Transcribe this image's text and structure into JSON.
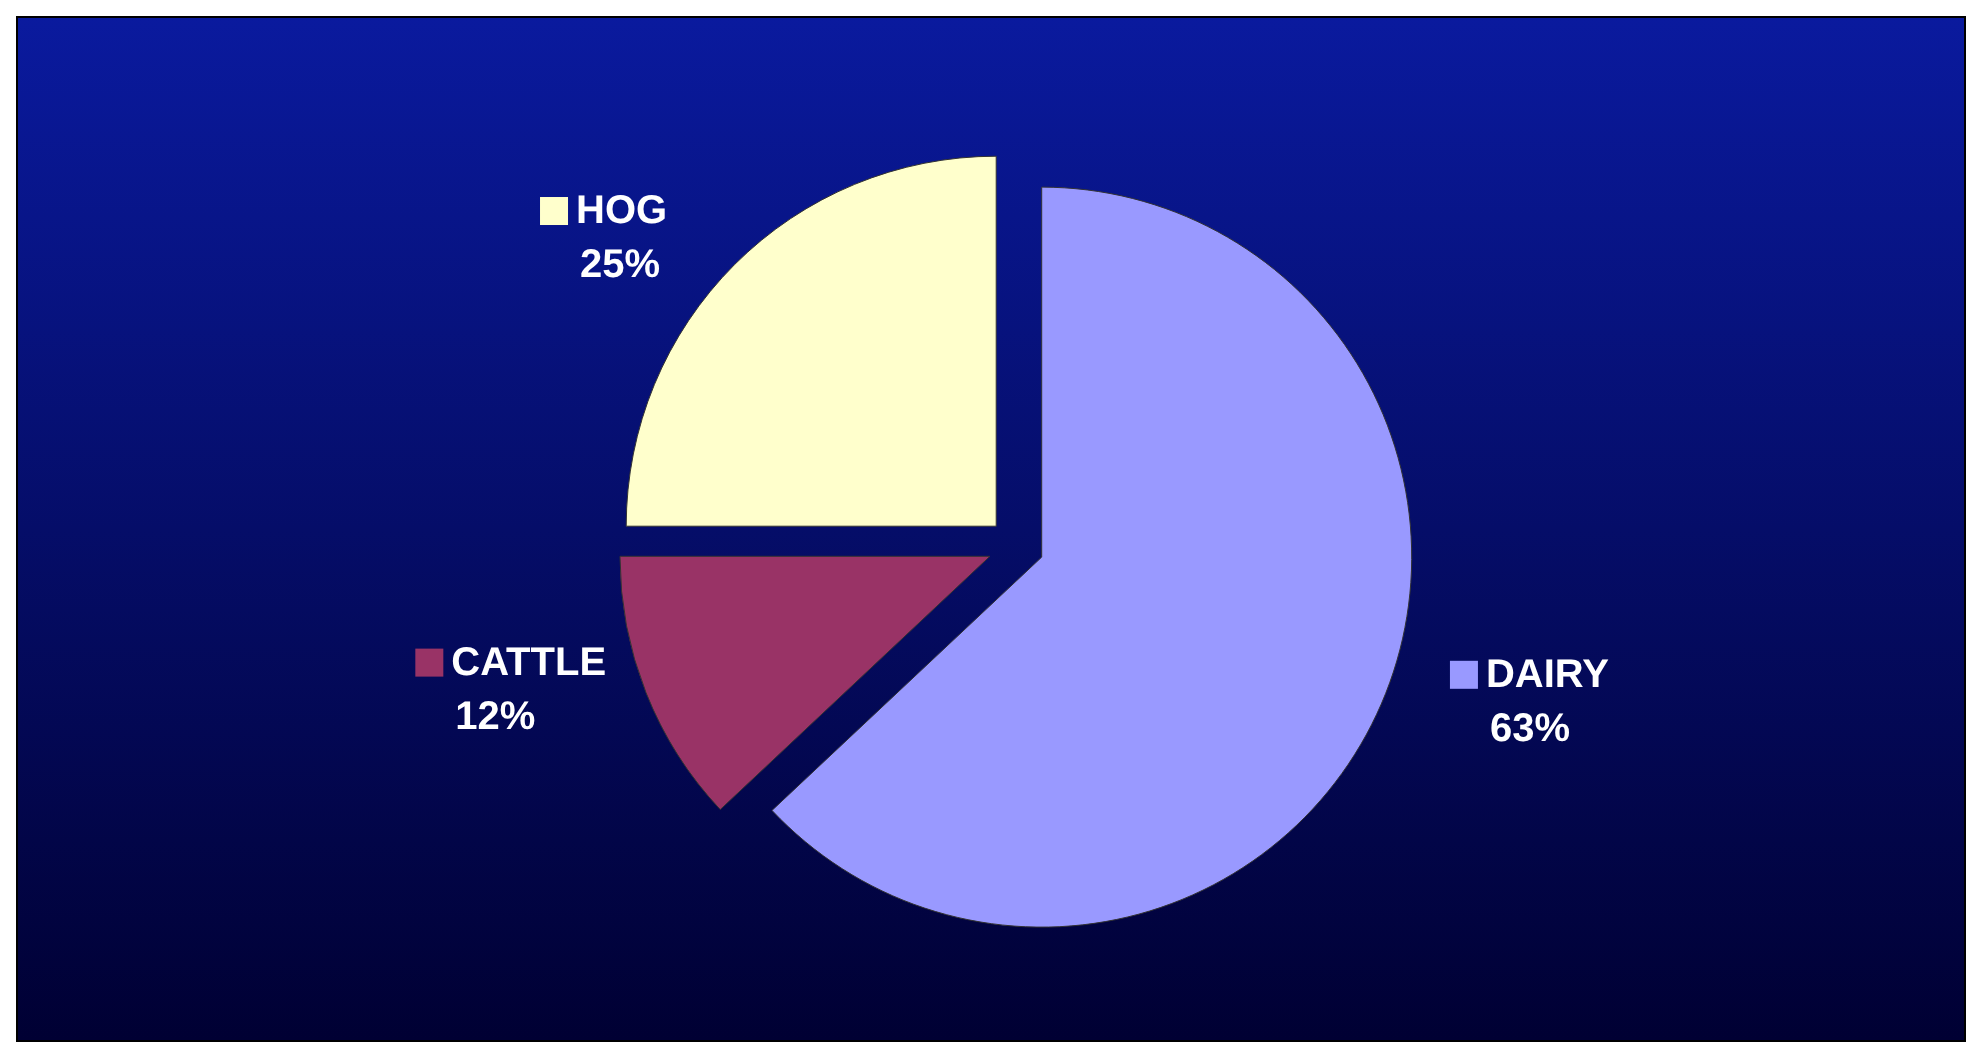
{
  "chart_data": {
    "type": "pie",
    "categories": [
      "DAIRY",
      "CATTLE",
      "HOG"
    ],
    "values": [
      63,
      12,
      25
    ],
    "colors": [
      "#9999ff",
      "#993366",
      "#ffffcc"
    ],
    "value_labels": [
      "63%",
      "12%",
      "25%"
    ],
    "legend": "left"
  }
}
